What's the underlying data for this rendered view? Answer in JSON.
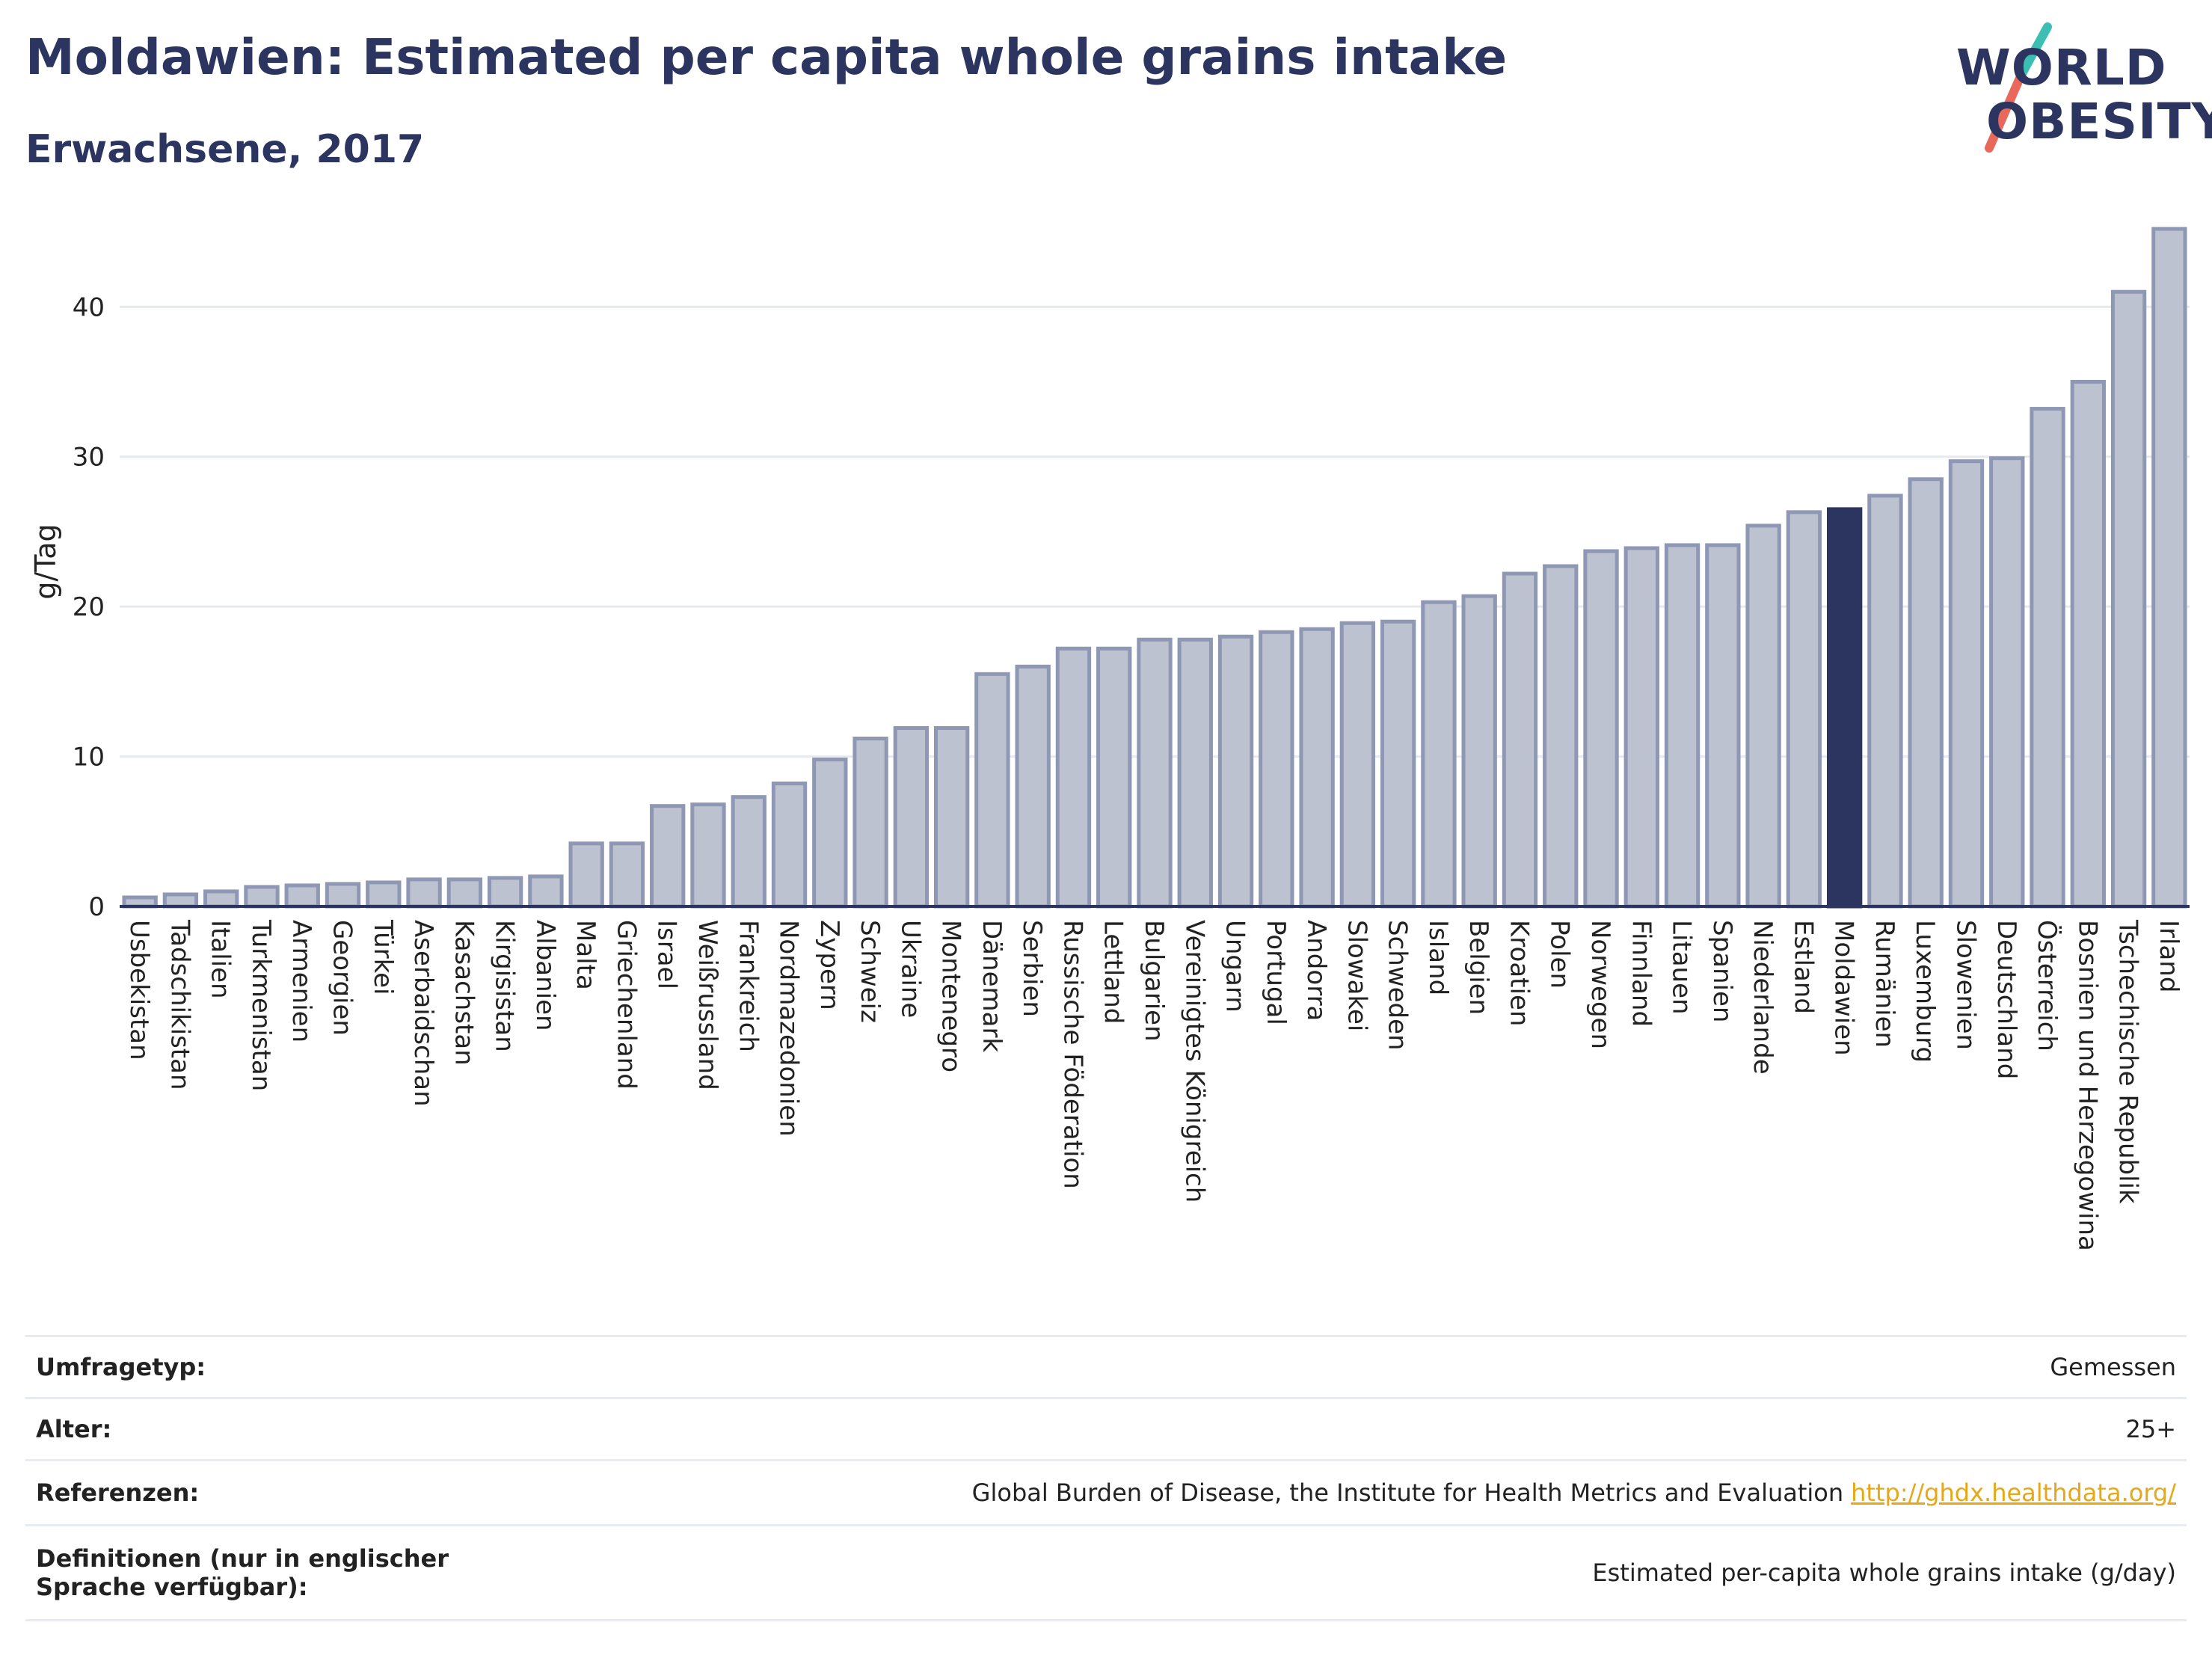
{
  "header": {
    "title": "Moldawien: Estimated per capita whole grains intake",
    "subtitle": "Erwachsene, 2017"
  },
  "logo": {
    "line1": "WORLD",
    "line2": "OBESITY"
  },
  "colors": {
    "bar_fill": "#bcc2d0",
    "bar_stroke": "#8e97b3",
    "highlight": "#2b3560",
    "grid": "#e6e9f0",
    "axis": "#2b3560",
    "logo_slash_top": "#3bbfb2",
    "logo_slash_bottom": "#e8695c"
  },
  "chart_data": {
    "type": "bar",
    "ylabel": "g/Tag",
    "xlabel": "",
    "ylim": [
      0,
      46
    ],
    "yticks": [
      0,
      10,
      20,
      30,
      40
    ],
    "grid": true,
    "highlight": "Moldawien",
    "categories": [
      "Usbekistan",
      "Tadschikistan",
      "Italien",
      "Turkmenistan",
      "Armenien",
      "Georgien",
      "Türkei",
      "Aserbaidschan",
      "Kasachstan",
      "Kirgisistan",
      "Albanien",
      "Malta",
      "Griechenland",
      "Israel",
      "Weißrussland",
      "Frankreich",
      "Nordmazedonien",
      "Zypern",
      "Schweiz",
      "Ukraine",
      "Montenegro",
      "Dänemark",
      "Serbien",
      "Russische Föderation",
      "Lettland",
      "Bulgarien",
      "Vereinigtes Königreich",
      "Ungarn",
      "Portugal",
      "Andorra",
      "Slowakei",
      "Schweden",
      "Island",
      "Belgien",
      "Kroatien",
      "Polen",
      "Norwegen",
      "Finnland",
      "Litauen",
      "Spanien",
      "Niederlande",
      "Estland",
      "Moldawien",
      "Rumänien",
      "Luxemburg",
      "Slowenien",
      "Deutschland",
      "Österreich",
      "Bosnien und Herzegowina",
      "Tschechische Republik",
      "Irland"
    ],
    "values": [
      0.6,
      0.8,
      1.0,
      1.3,
      1.4,
      1.5,
      1.6,
      1.8,
      1.8,
      1.9,
      2.0,
      4.2,
      4.2,
      6.7,
      6.8,
      7.3,
      8.2,
      9.8,
      11.2,
      11.9,
      11.9,
      15.5,
      16.0,
      17.2,
      17.2,
      17.8,
      17.8,
      18.0,
      18.3,
      18.5,
      18.9,
      19.0,
      20.3,
      20.7,
      22.2,
      22.7,
      23.7,
      23.9,
      24.1,
      24.1,
      25.4,
      26.3,
      26.5,
      27.4,
      28.5,
      29.7,
      29.9,
      33.2,
      35.0,
      41.0,
      45.2
    ]
  },
  "meta": {
    "rows": [
      {
        "label": "Umfragetyp:",
        "value": "Gemessen"
      },
      {
        "label": "Alter:",
        "value": "25+"
      },
      {
        "label": "Referenzen:",
        "value": "Global Burden of Disease, the Institute for Health Metrics and Evaluation",
        "link": "http://ghdx.healthdata.org/"
      },
      {
        "label": "Definitionen (nur in englischer Sprache verfügbar):",
        "value": "Estimated per-capita whole grains intake (g/day)"
      }
    ]
  }
}
